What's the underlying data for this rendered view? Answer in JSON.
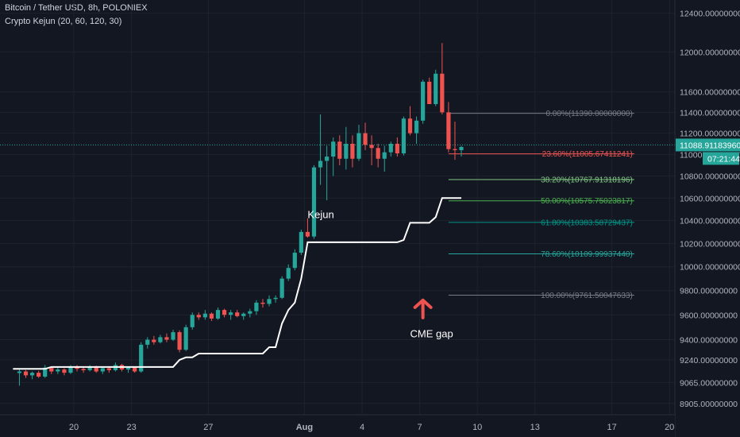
{
  "header": {
    "symbol_line": "Bitcoin / Tether USD, 8h, POLONIEX",
    "indicator_line": "Crypto Kejun (20, 60, 120, 30)"
  },
  "chart_data": {
    "type": "candlestick",
    "price_axis": {
      "ylim": [
        8820,
        12540
      ],
      "scale": "log",
      "tick_labels": [
        "12400.00000000",
        "12000.00000000",
        "11600.00000000",
        "11400.00000000",
        "11200.00000000",
        "11000.00000000",
        "10800.00000000",
        "10600.00000000",
        "10400.00000000",
        "10200.00000000",
        "10000.00000000",
        "9800.00000000",
        "9600.00000000",
        "9400.00000000",
        "9240.00000000",
        "9065.00000000",
        "8905.00000000"
      ],
      "tick_values": [
        12400,
        12000,
        11600,
        11400,
        11200,
        11000,
        10800,
        10600,
        10400,
        10200,
        10000,
        9800,
        9600,
        9400,
        9240,
        9065,
        8905
      ]
    },
    "time_axis": {
      "tick_labels": [
        "20",
        "23",
        "27",
        "Aug",
        "4",
        "7",
        "10",
        "13",
        "17",
        "20"
      ],
      "tick_day_index": [
        2,
        5,
        9,
        14,
        17,
        20,
        23,
        26,
        30,
        33
      ],
      "bars_per_day": 3,
      "first_bar_day_index": -1
    },
    "last_price": "11088.91183960",
    "countdown": "07:21:44",
    "colors": {
      "up": "#26a69a",
      "down": "#ef5350",
      "background": "#131722",
      "grid": "#1e222d",
      "kejun": "#ffffff",
      "price_line": "#26a69a"
    },
    "candles": [
      [
        9138,
        9168,
        9040,
        9150
      ],
      [
        9150,
        9160,
        9100,
        9120
      ],
      [
        9120,
        9150,
        9090,
        9140
      ],
      [
        9140,
        9155,
        9100,
        9110
      ],
      [
        9110,
        9200,
        9100,
        9180
      ],
      [
        9180,
        9190,
        9130,
        9150
      ],
      [
        9150,
        9180,
        9130,
        9165
      ],
      [
        9165,
        9175,
        9120,
        9140
      ],
      [
        9140,
        9200,
        9130,
        9190
      ],
      [
        9190,
        9200,
        9150,
        9170
      ],
      [
        9170,
        9190,
        9140,
        9160
      ],
      [
        9160,
        9200,
        9150,
        9185
      ],
      [
        9185,
        9195,
        9140,
        9150
      ],
      [
        9150,
        9180,
        9130,
        9175
      ],
      [
        9175,
        9190,
        9140,
        9160
      ],
      [
        9160,
        9220,
        9150,
        9200
      ],
      [
        9200,
        9210,
        9150,
        9165
      ],
      [
        9165,
        9190,
        9140,
        9180
      ],
      [
        9180,
        9185,
        9140,
        9150
      ],
      [
        9150,
        9380,
        9140,
        9360
      ],
      [
        9360,
        9420,
        9330,
        9400
      ],
      [
        9400,
        9430,
        9360,
        9380
      ],
      [
        9380,
        9440,
        9370,
        9420
      ],
      [
        9420,
        9450,
        9380,
        9400
      ],
      [
        9400,
        9480,
        9390,
        9460
      ],
      [
        9460,
        9475,
        9300,
        9320
      ],
      [
        9320,
        9520,
        9310,
        9500
      ],
      [
        9500,
        9620,
        9480,
        9600
      ],
      [
        9600,
        9620,
        9560,
        9580
      ],
      [
        9580,
        9640,
        9560,
        9610
      ],
      [
        9610,
        9620,
        9550,
        9570
      ],
      [
        9570,
        9660,
        9560,
        9640
      ],
      [
        9640,
        9650,
        9580,
        9600
      ],
      [
        9600,
        9640,
        9560,
        9620
      ],
      [
        9620,
        9640,
        9580,
        9590
      ],
      [
        9590,
        9620,
        9560,
        9610
      ],
      [
        9610,
        9650,
        9580,
        9630
      ],
      [
        9630,
        9720,
        9600,
        9700
      ],
      [
        9700,
        9730,
        9660,
        9690
      ],
      [
        9690,
        9760,
        9670,
        9730
      ],
      [
        9730,
        9760,
        9700,
        9740
      ],
      [
        9740,
        9920,
        9730,
        9900
      ],
      [
        9900,
        10020,
        9880,
        9990
      ],
      [
        9990,
        10150,
        9970,
        10120
      ],
      [
        10120,
        10320,
        10100,
        10300
      ],
      [
        10300,
        10420,
        10250,
        10260
      ],
      [
        10260,
        10900,
        10240,
        10880
      ],
      [
        10880,
        11380,
        10720,
        10940
      ],
      [
        10940,
        11080,
        10580,
        10980
      ],
      [
        10980,
        11160,
        10800,
        11120
      ],
      [
        11120,
        11180,
        10900,
        10960
      ],
      [
        10960,
        11260,
        10860,
        11100
      ],
      [
        11100,
        11180,
        10880,
        10960
      ],
      [
        10960,
        11280,
        10940,
        11200
      ],
      [
        11200,
        11300,
        11040,
        11090
      ],
      [
        11090,
        11180,
        10900,
        11060
      ],
      [
        11060,
        11100,
        10880,
        10960
      ],
      [
        10960,
        11080,
        10840,
        11020
      ],
      [
        11020,
        11120,
        10980,
        11100
      ],
      [
        11100,
        11160,
        10980,
        11010
      ],
      [
        11010,
        11360,
        10990,
        11340
      ],
      [
        11340,
        11460,
        11180,
        11200
      ],
      [
        11200,
        11360,
        11100,
        11320
      ],
      [
        11320,
        11720,
        11290,
        11700
      ],
      [
        11700,
        11740,
        11480,
        11480
      ],
      [
        11480,
        11820,
        11460,
        11780
      ],
      [
        11780,
        12090,
        11380,
        11400
      ],
      [
        11400,
        11500,
        11020,
        11050
      ],
      [
        11050,
        11310,
        10950,
        11040
      ],
      [
        11040,
        11080,
        10980,
        11070
      ]
    ],
    "kejun_line": [
      9170,
      9170,
      9170,
      9170,
      9170,
      9185,
      9185,
      9185,
      9185,
      9185,
      9185,
      9185,
      9185,
      9185,
      9185,
      9185,
      9185,
      9185,
      9185,
      9185,
      9185,
      9185,
      9185,
      9185,
      9185,
      9240,
      9260,
      9260,
      9290,
      9290,
      9290,
      9290,
      9290,
      9290,
      9290,
      9290,
      9290,
      9290,
      9290,
      9340,
      9340,
      9530,
      9640,
      9700,
      9900,
      10210,
      10210,
      10210,
      10210,
      10210,
      10210,
      10210,
      10210,
      10210,
      10210,
      10210,
      10210,
      10210,
      10210,
      10210,
      10230,
      10380,
      10380,
      10380,
      10380,
      10430,
      10600,
      10600,
      10600,
      10600
    ],
    "annotations": [
      {
        "text": "Kejun",
        "at_bar": 45,
        "price": 10420,
        "color": "#ffffff"
      },
      {
        "text": "CME gap",
        "at_bar": 61,
        "price": 9420,
        "color": "#ffffff"
      }
    ],
    "fibonacci": {
      "start_bar": 67,
      "end_bar": 96,
      "levels": [
        {
          "label": "0.00%(11390.00000000)",
          "price": 11390,
          "color": "#787b86"
        },
        {
          "label": "23.60%(11005.67411241)",
          "price": 11005.67,
          "color": "#ef5350"
        },
        {
          "label": "38.20%(10767.91318196)",
          "price": 10767.91,
          "color": "#81c784"
        },
        {
          "label": "50.00%(10575.75023817)",
          "price": 10575.75,
          "color": "#4caf50"
        },
        {
          "label": "61.80%(10383.58729437)",
          "price": 10383.59,
          "color": "#009688"
        },
        {
          "label": "78.60%(10109.99937440)",
          "price": 10110,
          "color": "#26a69a"
        },
        {
          "label": "100.00%(9761.50047633)",
          "price": 9761.5,
          "color": "#787b86"
        }
      ]
    }
  }
}
